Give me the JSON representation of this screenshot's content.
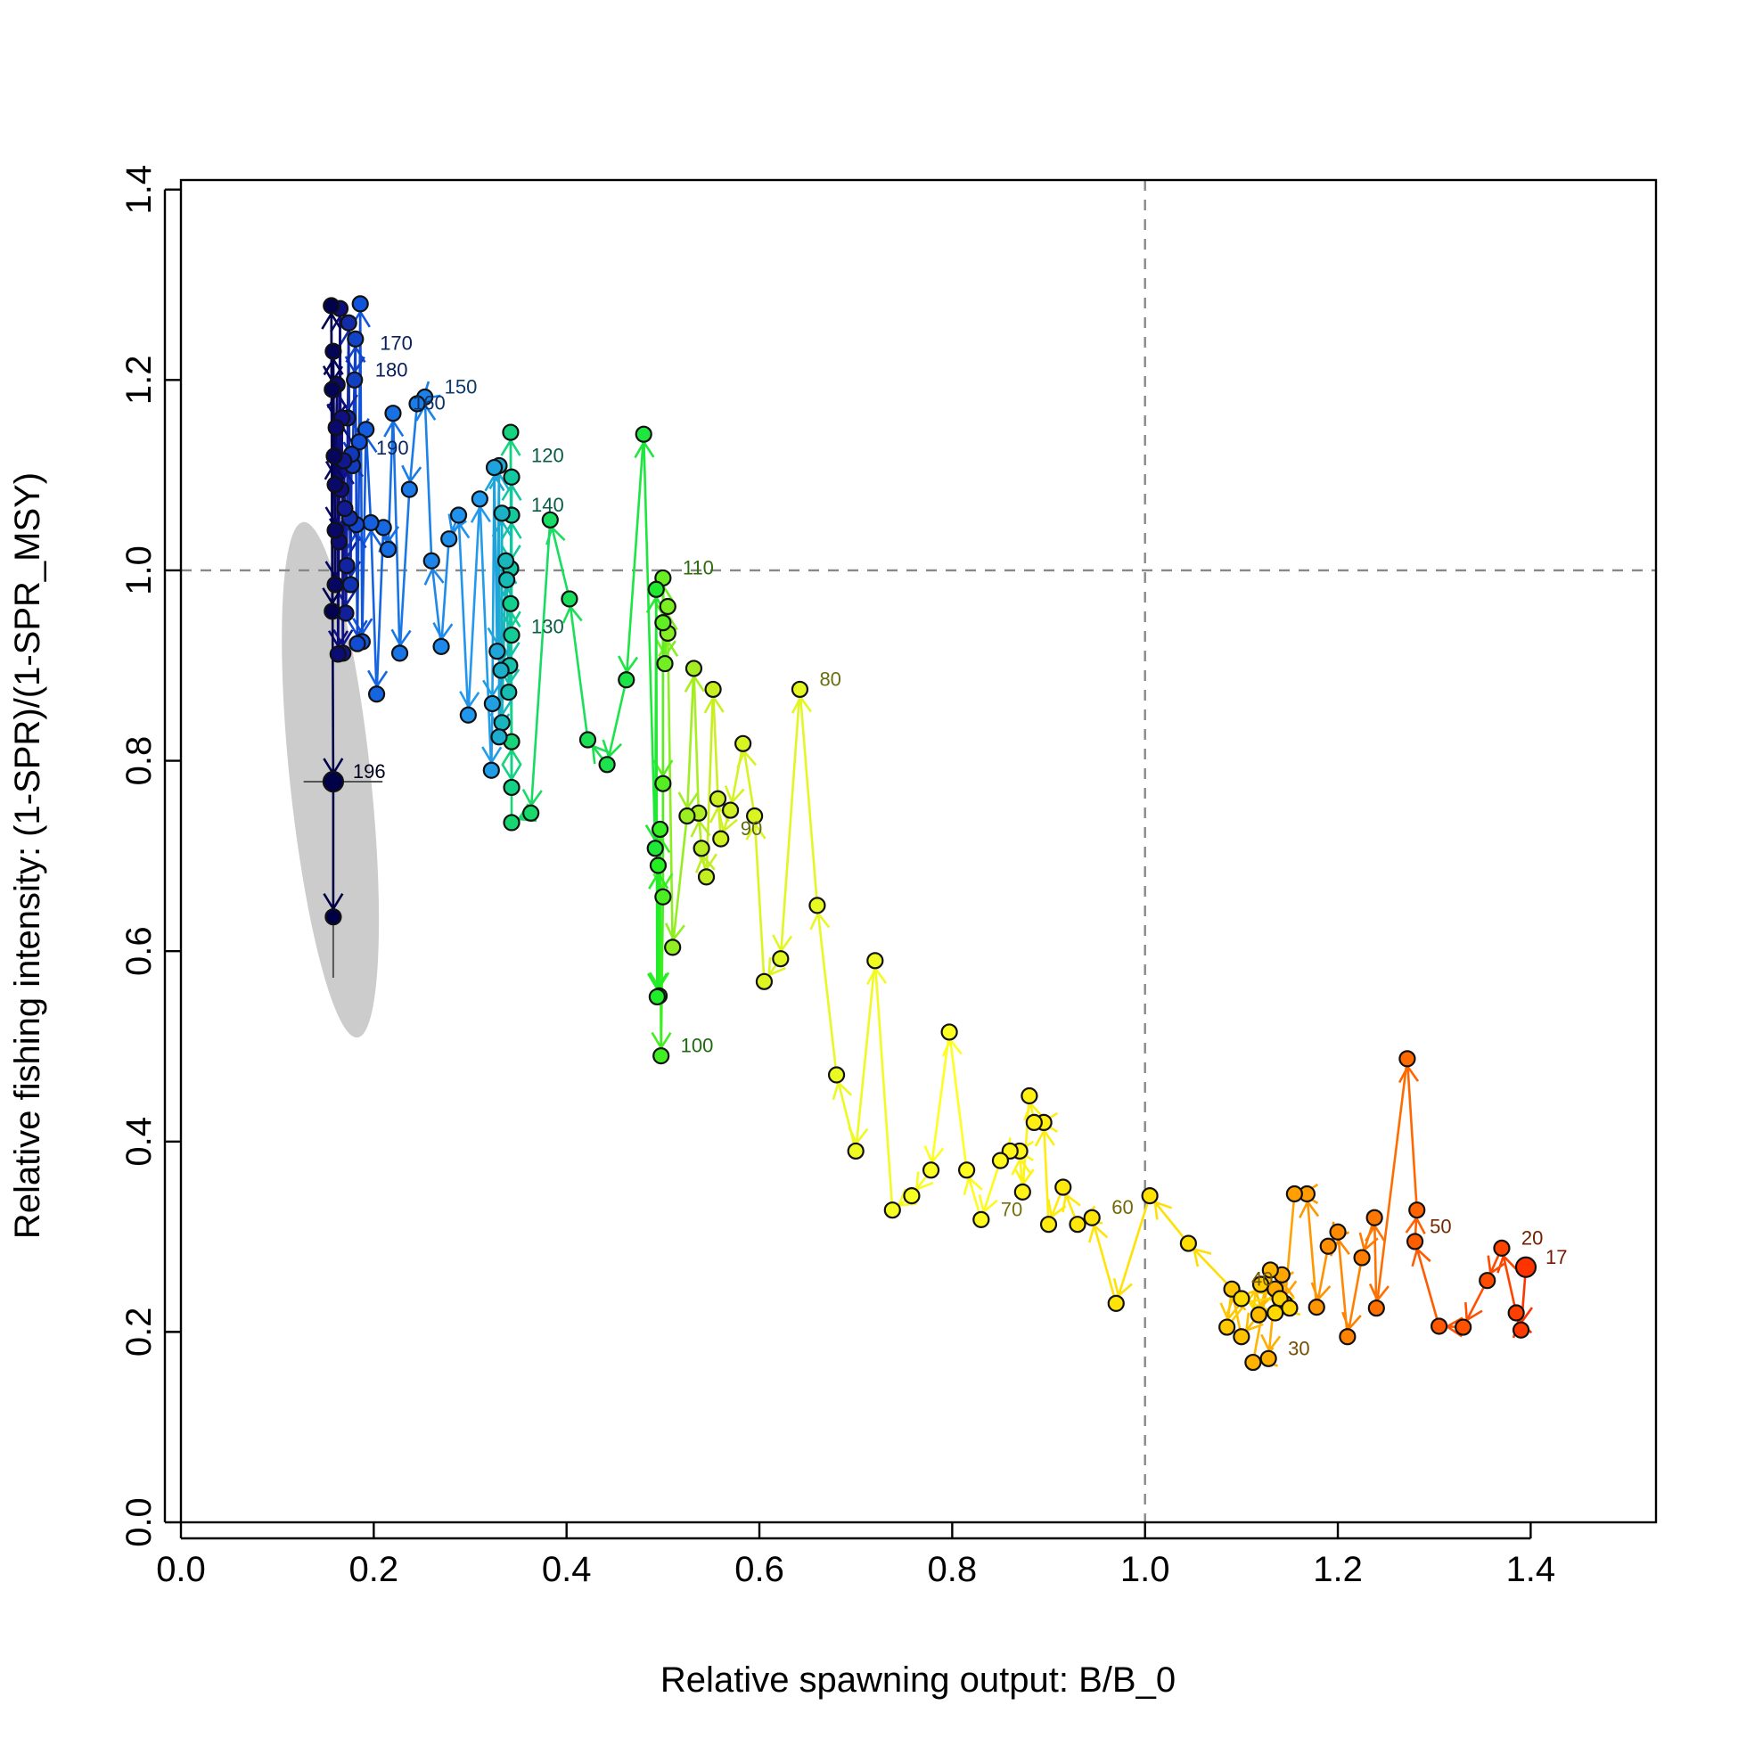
{
  "chart_data": {
    "type": "scatter",
    "subtype": "kobe-phase-plot",
    "title": "",
    "xlabel": "Relative spawning output: B/B_0",
    "ylabel": "Relative fishing intensity: (1-SPR)/(1-SPR_MSY)",
    "xlim": [
      0.0,
      1.53
    ],
    "ylim": [
      0.0,
      1.41
    ],
    "x_ticks": [
      "0.0",
      "0.2",
      "0.4",
      "0.6",
      "0.8",
      "1.0",
      "1.2",
      "1.4"
    ],
    "y_ticks": [
      "0.0",
      "0.2",
      "0.4",
      "0.6",
      "0.8",
      "1.0",
      "1.2",
      "1.4"
    ],
    "reference_lines": {
      "x": 1.0,
      "y": 1.0,
      "style": "dashed",
      "color": "#888888"
    },
    "grid": false,
    "legend": "none",
    "color_scale": "year gradient: red (early) to orange, yellow, green, blue, navy (late)",
    "trajectory": [
      [
        1.395,
        0.268
      ],
      [
        1.39,
        0.202
      ],
      [
        1.385,
        0.22
      ],
      [
        1.37,
        0.288
      ],
      [
        1.355,
        0.254
      ],
      [
        1.33,
        0.205
      ],
      [
        1.305,
        0.206
      ],
      [
        1.28,
        0.295
      ],
      [
        1.282,
        0.328
      ],
      [
        1.272,
        0.487
      ],
      [
        1.24,
        0.225
      ],
      [
        1.238,
        0.32
      ],
      [
        1.225,
        0.278
      ],
      [
        1.21,
        0.195
      ],
      [
        1.2,
        0.305
      ],
      [
        1.19,
        0.29
      ],
      [
        1.178,
        0.226
      ],
      [
        1.168,
        0.345
      ],
      [
        1.155,
        0.345
      ],
      [
        1.145,
        0.23
      ],
      [
        1.142,
        0.26
      ],
      [
        1.135,
        0.245
      ],
      [
        1.128,
        0.172
      ],
      [
        1.112,
        0.168
      ],
      [
        1.13,
        0.265
      ],
      [
        1.118,
        0.218
      ],
      [
        1.1,
        0.195
      ],
      [
        1.09,
        0.245
      ],
      [
        1.085,
        0.205
      ],
      [
        1.12,
        0.25
      ],
      [
        1.14,
        0.235
      ],
      [
        1.15,
        0.225
      ],
      [
        1.135,
        0.22
      ],
      [
        1.1,
        0.235
      ],
      [
        1.045,
        0.293
      ],
      [
        1.005,
        0.343
      ],
      [
        0.97,
        0.23
      ],
      [
        0.945,
        0.32
      ],
      [
        0.93,
        0.313
      ],
      [
        0.915,
        0.352
      ],
      [
        0.9,
        0.313
      ],
      [
        0.895,
        0.42
      ],
      [
        0.885,
        0.42
      ],
      [
        0.88,
        0.448
      ],
      [
        0.873,
        0.347
      ],
      [
        0.87,
        0.39
      ],
      [
        0.86,
        0.39
      ],
      [
        0.85,
        0.38
      ],
      [
        0.83,
        0.318
      ],
      [
        0.815,
        0.37
      ],
      [
        0.797,
        0.515
      ],
      [
        0.778,
        0.37
      ],
      [
        0.758,
        0.343
      ],
      [
        0.738,
        0.328
      ],
      [
        0.72,
        0.59
      ],
      [
        0.7,
        0.39
      ],
      [
        0.68,
        0.47
      ],
      [
        0.66,
        0.648
      ],
      [
        0.642,
        0.875
      ],
      [
        0.622,
        0.592
      ],
      [
        0.605,
        0.568
      ],
      [
        0.595,
        0.742
      ],
      [
        0.583,
        0.818
      ],
      [
        0.57,
        0.748
      ],
      [
        0.56,
        0.718
      ],
      [
        0.557,
        0.76
      ],
      [
        0.552,
        0.875
      ],
      [
        0.545,
        0.678
      ],
      [
        0.54,
        0.708
      ],
      [
        0.537,
        0.745
      ],
      [
        0.532,
        0.897
      ],
      [
        0.525,
        0.742
      ],
      [
        0.51,
        0.604
      ],
      [
        0.505,
        0.934
      ],
      [
        0.505,
        0.962
      ],
      [
        0.502,
        0.902
      ],
      [
        0.5,
        0.992
      ],
      [
        0.5,
        0.945
      ],
      [
        0.5,
        0.776
      ],
      [
        0.5,
        0.657
      ],
      [
        0.498,
        0.49
      ],
      [
        0.497,
        0.728
      ],
      [
        0.496,
        0.553
      ],
      [
        0.495,
        0.69
      ],
      [
        0.494,
        0.552
      ],
      [
        0.493,
        0.98
      ],
      [
        0.492,
        0.708
      ],
      [
        0.48,
        1.143
      ],
      [
        0.462,
        0.885
      ],
      [
        0.442,
        0.796
      ],
      [
        0.422,
        0.822
      ],
      [
        0.403,
        0.97
      ],
      [
        0.383,
        1.053
      ],
      [
        0.363,
        0.745
      ],
      [
        0.343,
        0.735
      ],
      [
        0.343,
        0.82
      ],
      [
        0.342,
        1.145
      ],
      [
        0.343,
        0.772
      ],
      [
        0.342,
        0.965
      ],
      [
        0.343,
        0.932
      ],
      [
        0.343,
        1.058
      ],
      [
        0.343,
        1.098
      ],
      [
        0.342,
        1.002
      ],
      [
        0.341,
        0.9
      ],
      [
        0.34,
        0.872
      ],
      [
        0.338,
        0.99
      ],
      [
        0.337,
        1.01
      ],
      [
        0.333,
        0.84
      ],
      [
        0.333,
        1.06
      ],
      [
        0.332,
        0.895
      ],
      [
        0.33,
        0.825
      ],
      [
        0.33,
        1.11
      ],
      [
        0.328,
        0.915
      ],
      [
        0.325,
        1.108
      ],
      [
        0.323,
        0.86
      ],
      [
        0.322,
        0.79
      ],
      [
        0.31,
        1.075
      ],
      [
        0.298,
        0.848
      ],
      [
        0.288,
        1.058
      ],
      [
        0.278,
        1.033
      ],
      [
        0.27,
        0.92
      ],
      [
        0.26,
        1.01
      ],
      [
        0.253,
        1.182
      ],
      [
        0.245,
        1.175
      ],
      [
        0.237,
        1.085
      ],
      [
        0.227,
        0.913
      ],
      [
        0.22,
        1.165
      ],
      [
        0.215,
        1.022
      ],
      [
        0.21,
        1.045
      ],
      [
        0.203,
        0.87
      ],
      [
        0.197,
        1.05
      ],
      [
        0.192,
        1.148
      ],
      [
        0.188,
        0.925
      ],
      [
        0.186,
        1.28
      ],
      [
        0.185,
        1.135
      ],
      [
        0.183,
        0.923
      ],
      [
        0.182,
        1.048
      ],
      [
        0.181,
        1.243
      ],
      [
        0.18,
        1.2
      ],
      [
        0.178,
        1.11
      ],
      [
        0.177,
        1.122
      ],
      [
        0.176,
        0.985
      ],
      [
        0.175,
        1.055
      ],
      [
        0.174,
        1.26
      ],
      [
        0.173,
        1.16
      ],
      [
        0.172,
        1.005
      ],
      [
        0.171,
        0.955
      ],
      [
        0.17,
        1.065
      ],
      [
        0.169,
        1.115
      ],
      [
        0.168,
        0.913
      ],
      [
        0.167,
        1.16
      ],
      [
        0.166,
        1.085
      ],
      [
        0.165,
        1.275
      ],
      [
        0.164,
        1.03
      ],
      [
        0.163,
        0.912
      ],
      [
        0.162,
        1.195
      ],
      [
        0.161,
        1.15
      ],
      [
        0.16,
        1.09
      ],
      [
        0.16,
        1.042
      ],
      [
        0.16,
        0.985
      ],
      [
        0.159,
        1.12
      ],
      [
        0.158,
        1.23
      ],
      [
        0.157,
        1.19
      ],
      [
        0.157,
        0.957
      ],
      [
        0.156,
        1.278
      ],
      [
        0.158,
        0.778
      ],
      [
        0.158,
        0.636
      ]
    ],
    "final_point": {
      "label": "196",
      "x": 0.158,
      "y": 0.778
    },
    "uncertainty": {
      "ellipse_center": [
        0.155,
        0.78
      ],
      "x_interval": [
        0.118,
        0.198
      ],
      "y_interval": [
        0.572,
        0.935
      ],
      "color": "#cccccc"
    },
    "year_labels": [
      {
        "text": "17",
        "x": 1.395,
        "y": 0.268
      },
      {
        "text": "20",
        "x": 1.37,
        "y": 0.288
      },
      {
        "text": "30",
        "x": 1.128,
        "y": 0.172
      },
      {
        "text": "40",
        "x": 1.09,
        "y": 0.245
      },
      {
        "text": "50",
        "x": 1.275,
        "y": 0.3
      },
      {
        "text": "60",
        "x": 0.945,
        "y": 0.32
      },
      {
        "text": "70",
        "x": 0.83,
        "y": 0.318
      },
      {
        "text": "80",
        "x": 0.642,
        "y": 0.875
      },
      {
        "text": "90",
        "x": 0.56,
        "y": 0.718
      },
      {
        "text": "100",
        "x": 0.498,
        "y": 0.49
      },
      {
        "text": "110",
        "x": 0.5,
        "y": 0.992
      },
      {
        "text": "120",
        "x": 0.343,
        "y": 1.11
      },
      {
        "text": "130",
        "x": 0.343,
        "y": 0.93
      },
      {
        "text": "140",
        "x": 0.343,
        "y": 1.058
      },
      {
        "text": "150",
        "x": 0.253,
        "y": 1.182
      },
      {
        "text": "160",
        "x": 0.22,
        "y": 1.165
      },
      {
        "text": "170",
        "x": 0.186,
        "y": 1.228
      },
      {
        "text": "180",
        "x": 0.181,
        "y": 1.2
      },
      {
        "text": "190",
        "x": 0.182,
        "y": 1.118
      },
      {
        "text": "196",
        "x": 0.158,
        "y": 0.778
      }
    ]
  }
}
